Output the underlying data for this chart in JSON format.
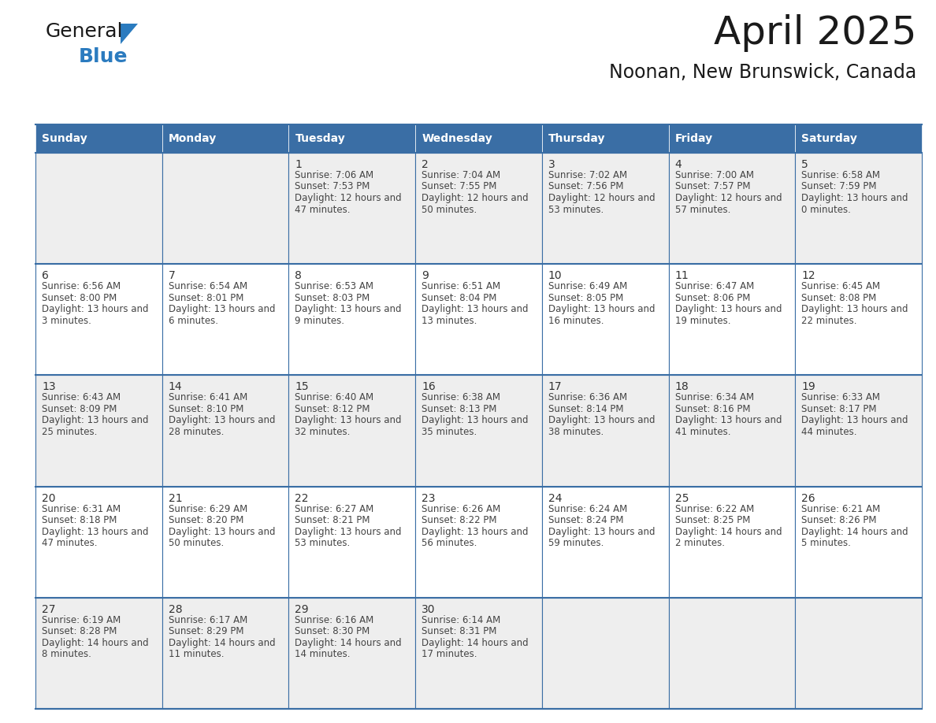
{
  "title": "April 2025",
  "subtitle": "Noonan, New Brunswick, Canada",
  "days_of_week": [
    "Sunday",
    "Monday",
    "Tuesday",
    "Wednesday",
    "Thursday",
    "Friday",
    "Saturday"
  ],
  "header_bg": "#3a6ea5",
  "header_text": "#ffffff",
  "row_bg": [
    "#eeeeee",
    "#ffffff",
    "#eeeeee",
    "#ffffff",
    "#eeeeee"
  ],
  "cell_border_color": "#3a6ea5",
  "day_num_color": "#333333",
  "text_color": "#444444",
  "title_color": "#1a1a1a",
  "subtitle_color": "#1a1a1a",
  "calendar": [
    [
      {
        "day": null,
        "sunrise": null,
        "sunset": null,
        "daylight": null
      },
      {
        "day": null,
        "sunrise": null,
        "sunset": null,
        "daylight": null
      },
      {
        "day": 1,
        "sunrise": "7:06 AM",
        "sunset": "7:53 PM",
        "daylight": "12 hours and 47 minutes."
      },
      {
        "day": 2,
        "sunrise": "7:04 AM",
        "sunset": "7:55 PM",
        "daylight": "12 hours and 50 minutes."
      },
      {
        "day": 3,
        "sunrise": "7:02 AM",
        "sunset": "7:56 PM",
        "daylight": "12 hours and 53 minutes."
      },
      {
        "day": 4,
        "sunrise": "7:00 AM",
        "sunset": "7:57 PM",
        "daylight": "12 hours and 57 minutes."
      },
      {
        "day": 5,
        "sunrise": "6:58 AM",
        "sunset": "7:59 PM",
        "daylight": "13 hours and 0 minutes."
      }
    ],
    [
      {
        "day": 6,
        "sunrise": "6:56 AM",
        "sunset": "8:00 PM",
        "daylight": "13 hours and 3 minutes."
      },
      {
        "day": 7,
        "sunrise": "6:54 AM",
        "sunset": "8:01 PM",
        "daylight": "13 hours and 6 minutes."
      },
      {
        "day": 8,
        "sunrise": "6:53 AM",
        "sunset": "8:03 PM",
        "daylight": "13 hours and 9 minutes."
      },
      {
        "day": 9,
        "sunrise": "6:51 AM",
        "sunset": "8:04 PM",
        "daylight": "13 hours and 13 minutes."
      },
      {
        "day": 10,
        "sunrise": "6:49 AM",
        "sunset": "8:05 PM",
        "daylight": "13 hours and 16 minutes."
      },
      {
        "day": 11,
        "sunrise": "6:47 AM",
        "sunset": "8:06 PM",
        "daylight": "13 hours and 19 minutes."
      },
      {
        "day": 12,
        "sunrise": "6:45 AM",
        "sunset": "8:08 PM",
        "daylight": "13 hours and 22 minutes."
      }
    ],
    [
      {
        "day": 13,
        "sunrise": "6:43 AM",
        "sunset": "8:09 PM",
        "daylight": "13 hours and 25 minutes."
      },
      {
        "day": 14,
        "sunrise": "6:41 AM",
        "sunset": "8:10 PM",
        "daylight": "13 hours and 28 minutes."
      },
      {
        "day": 15,
        "sunrise": "6:40 AM",
        "sunset": "8:12 PM",
        "daylight": "13 hours and 32 minutes."
      },
      {
        "day": 16,
        "sunrise": "6:38 AM",
        "sunset": "8:13 PM",
        "daylight": "13 hours and 35 minutes."
      },
      {
        "day": 17,
        "sunrise": "6:36 AM",
        "sunset": "8:14 PM",
        "daylight": "13 hours and 38 minutes."
      },
      {
        "day": 18,
        "sunrise": "6:34 AM",
        "sunset": "8:16 PM",
        "daylight": "13 hours and 41 minutes."
      },
      {
        "day": 19,
        "sunrise": "6:33 AM",
        "sunset": "8:17 PM",
        "daylight": "13 hours and 44 minutes."
      }
    ],
    [
      {
        "day": 20,
        "sunrise": "6:31 AM",
        "sunset": "8:18 PM",
        "daylight": "13 hours and 47 minutes."
      },
      {
        "day": 21,
        "sunrise": "6:29 AM",
        "sunset": "8:20 PM",
        "daylight": "13 hours and 50 minutes."
      },
      {
        "day": 22,
        "sunrise": "6:27 AM",
        "sunset": "8:21 PM",
        "daylight": "13 hours and 53 minutes."
      },
      {
        "day": 23,
        "sunrise": "6:26 AM",
        "sunset": "8:22 PM",
        "daylight": "13 hours and 56 minutes."
      },
      {
        "day": 24,
        "sunrise": "6:24 AM",
        "sunset": "8:24 PM",
        "daylight": "13 hours and 59 minutes."
      },
      {
        "day": 25,
        "sunrise": "6:22 AM",
        "sunset": "8:25 PM",
        "daylight": "14 hours and 2 minutes."
      },
      {
        "day": 26,
        "sunrise": "6:21 AM",
        "sunset": "8:26 PM",
        "daylight": "14 hours and 5 minutes."
      }
    ],
    [
      {
        "day": 27,
        "sunrise": "6:19 AM",
        "sunset": "8:28 PM",
        "daylight": "14 hours and 8 minutes."
      },
      {
        "day": 28,
        "sunrise": "6:17 AM",
        "sunset": "8:29 PM",
        "daylight": "14 hours and 11 minutes."
      },
      {
        "day": 29,
        "sunrise": "6:16 AM",
        "sunset": "8:30 PM",
        "daylight": "14 hours and 14 minutes."
      },
      {
        "day": 30,
        "sunrise": "6:14 AM",
        "sunset": "8:31 PM",
        "daylight": "14 hours and 17 minutes."
      },
      {
        "day": null,
        "sunrise": null,
        "sunset": null,
        "daylight": null
      },
      {
        "day": null,
        "sunrise": null,
        "sunset": null,
        "daylight": null
      },
      {
        "day": null,
        "sunrise": null,
        "sunset": null,
        "daylight": null
      }
    ]
  ],
  "logo_general_color": "#1a1a1a",
  "logo_blue_color": "#2b7bbf",
  "logo_triangle_color": "#2b7bbf"
}
